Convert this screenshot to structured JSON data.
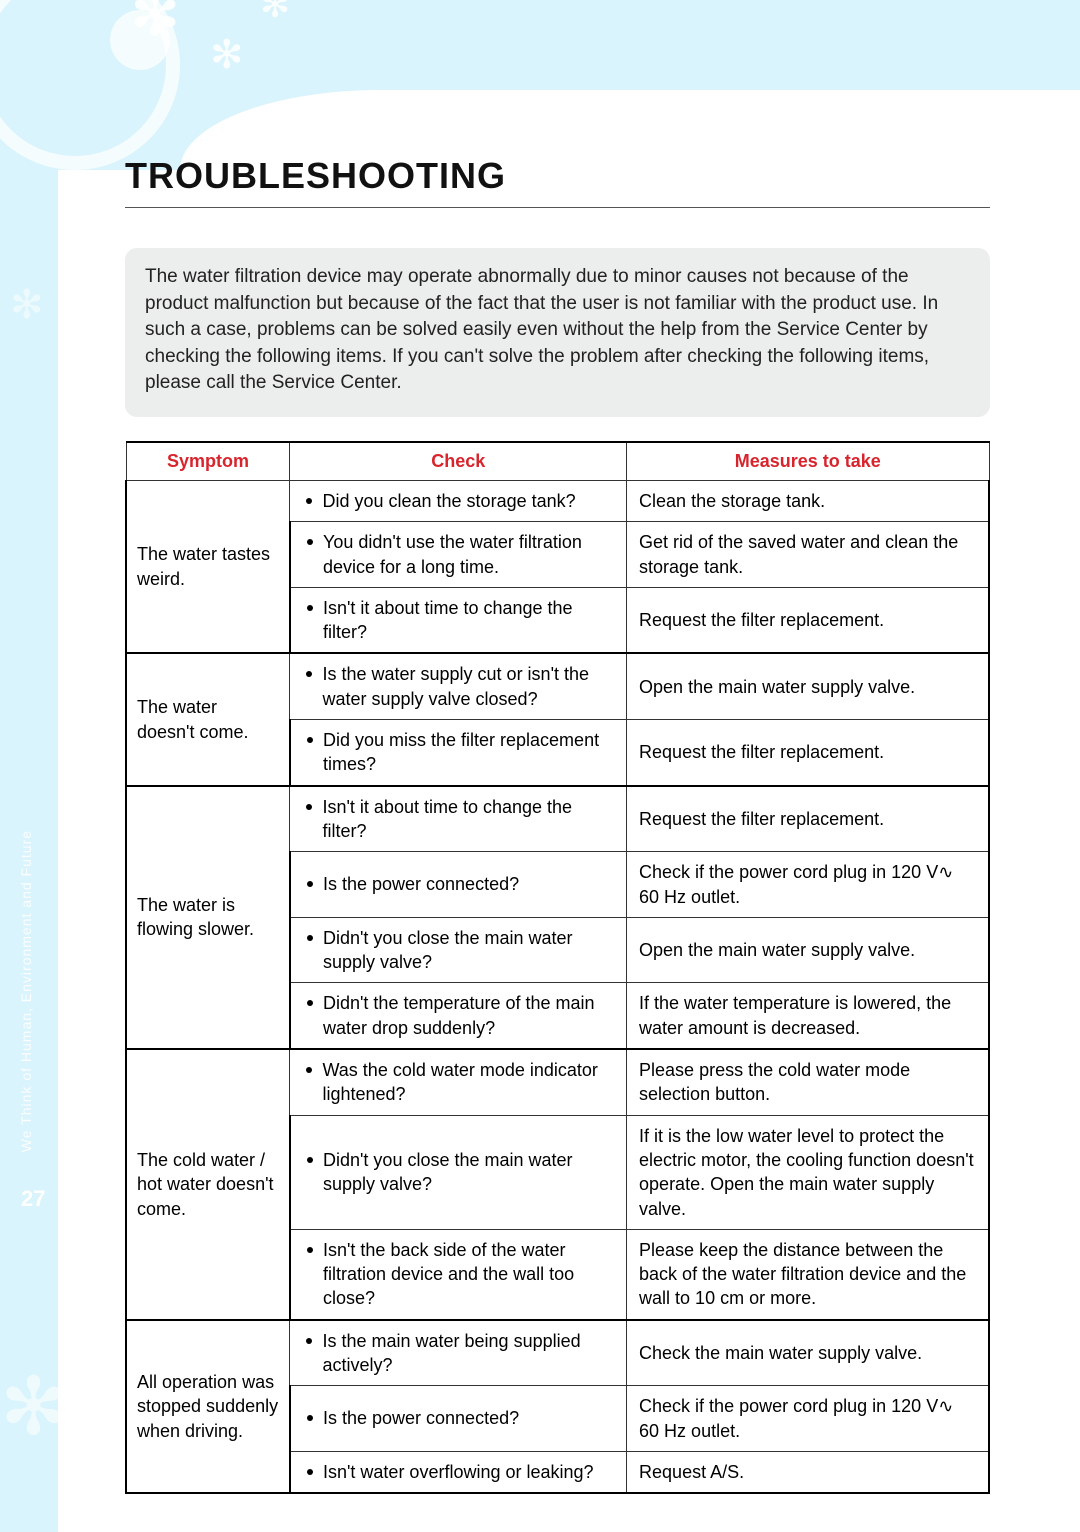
{
  "page_number": "27",
  "side_text": "We Think of Human, Environment and Future",
  "heading": "TROUBLESHOOTING",
  "intro": "The water filtration device may operate abnormally due to minor causes not because of the product malfunction but because of the fact that the user is not familiar with the product use. In such a case, problems can be solved easily even without the help from the Service Center by checking the following items. If you can't solve the problem after checking the following items, please call the Service Center.",
  "headers": {
    "symptom": "Symptom",
    "check": "Check",
    "measure": "Measures to take"
  },
  "groups": [
    {
      "symptom": "The water tastes weird.",
      "rows": [
        {
          "check": "Did you clean the storage tank?",
          "measure": "Clean the storage tank."
        },
        {
          "check": "You didn't use the water filtration device for a long time.",
          "measure": "Get rid of the saved water and clean the storage tank."
        },
        {
          "check": "Isn't it about time to change the filter?",
          "measure": "Request the filter replacement."
        }
      ]
    },
    {
      "symptom": "The water doesn't come.",
      "rows": [
        {
          "check": "Is the water supply cut or isn't the water supply valve closed?",
          "measure": "Open the main water supply valve."
        },
        {
          "check": "Did you miss the filter replacement times?",
          "measure": "Request the filter replacement."
        }
      ]
    },
    {
      "symptom": "The water is flowing slower.",
      "rows": [
        {
          "check": "Isn't it about time to change the filter?",
          "measure": "Request the filter replacement."
        },
        {
          "check": "Is the power connected?",
          "measure": "Check if the power cord plug in 120 V∿ 60 Hz outlet."
        },
        {
          "check": "Didn't you close the main water supply valve?",
          "measure": "Open the main water supply valve."
        },
        {
          "check": "Didn't the temperature of the main water drop suddenly?",
          "measure": "If the water temperature is lowered, the water amount is decreased."
        }
      ]
    },
    {
      "symptom": "The cold water / hot water doesn't come.",
      "rows": [
        {
          "check": "Was the cold water mode indicator lightened?",
          "measure": "Please press the cold water mode selection button."
        },
        {
          "check": "Didn't you close the main water supply valve?",
          "measure": "If it is the low water level to protect the electric motor, the cooling function doesn't operate. Open the main water supply valve."
        },
        {
          "check": "Isn't the back side of the water filtration device and the wall too close?",
          "measure": "Please keep the distance between the back of the water filtration device and the wall to 10 cm or more."
        }
      ]
    },
    {
      "symptom": "All operation was stopped suddenly when driving.",
      "rows": [
        {
          "check": "Is the main water being supplied actively?",
          "measure": "Check the main water supply valve."
        },
        {
          "check": "Is the power connected?",
          "measure": "Check if the power cord plug in 120 V∿ 60 Hz outlet."
        },
        {
          "check": "Isn't water overflowing or leaking?",
          "measure": "Request A/S."
        }
      ]
    }
  ]
}
